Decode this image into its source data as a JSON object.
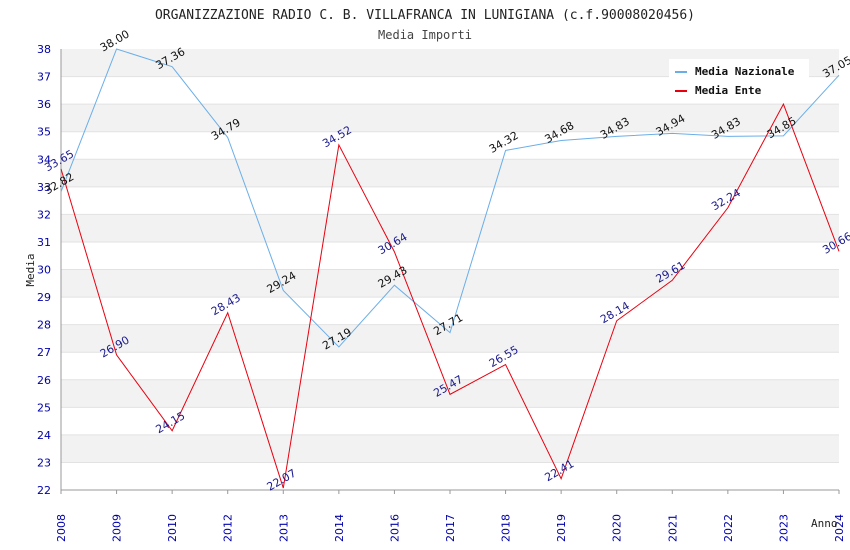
{
  "chart_data": {
    "type": "line",
    "title": "ORGANIZZAZIONE RADIO C. B. VILLAFRANCA IN LUNIGIANA (c.f.90008020456)",
    "subtitle": "Media Importi",
    "xlabel": "Anno",
    "ylabel": "Media",
    "ylim": [
      22,
      38
    ],
    "grid": "horizontal alternating bands",
    "legend_position": "top-right",
    "categories": [
      "2008",
      "2009",
      "2010",
      "2012",
      "2013",
      "2014",
      "2016",
      "2017",
      "2018",
      "2019",
      "2020",
      "2021",
      "2022",
      "2023",
      "2024"
    ],
    "series": [
      {
        "name": "Media Nazionale",
        "color": "#6aaee8",
        "values": [
          32.82,
          38.0,
          37.36,
          34.79,
          29.24,
          27.19,
          29.43,
          27.71,
          34.32,
          34.68,
          34.83,
          34.94,
          34.83,
          34.85,
          37.05
        ],
        "labels": [
          "32.82",
          "38.00",
          "37.36",
          "34.79",
          "29.24",
          "27.19",
          "29.43",
          "27.71",
          "34.32",
          "34.68",
          "34.83",
          "34.94",
          "34.83",
          "34.85",
          "37.05"
        ]
      },
      {
        "name": "Media Ente",
        "color": "#e8000f",
        "values": [
          33.65,
          26.9,
          24.15,
          28.43,
          22.07,
          34.52,
          30.64,
          25.47,
          26.55,
          22.41,
          28.14,
          29.61,
          32.24,
          36.0,
          30.66
        ],
        "labels": [
          "33.65",
          "26.90",
          "24.15",
          "28.43",
          "22.07",
          "34.52",
          "30.64",
          "25.47",
          "26.55",
          "22.41",
          "28.14",
          "29.61",
          "32.24",
          "",
          "30.66"
        ]
      }
    ]
  }
}
